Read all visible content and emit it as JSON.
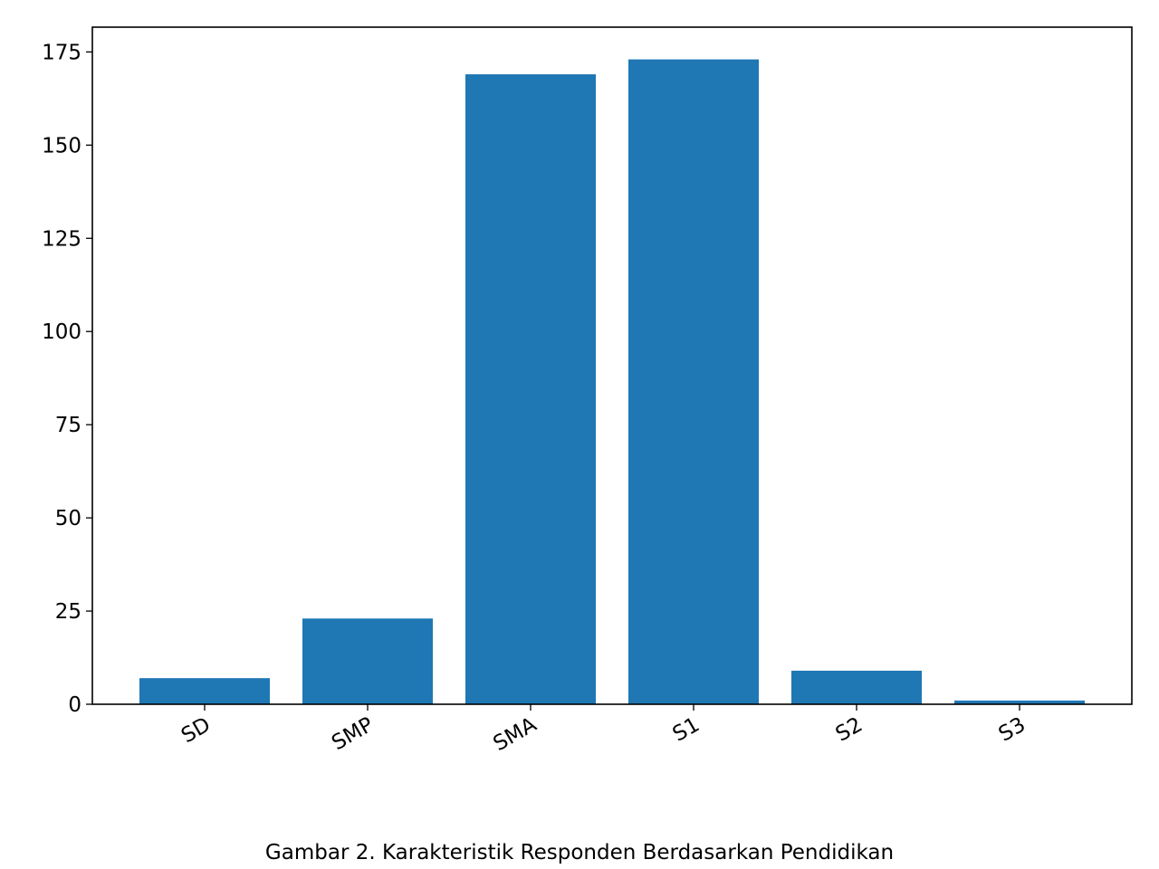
{
  "chart_data": {
    "type": "bar",
    "title": "Gambar 2. Karakteristik Responden Berdasarkan Pendidikan",
    "categories": [
      "SD",
      "SMP",
      "SMA",
      "S1",
      "S2",
      "S3"
    ],
    "values": [
      7,
      23,
      169,
      173,
      9,
      1
    ],
    "color": "#1f77b4",
    "ylim": [
      0,
      181.65
    ],
    "yticks": [
      0,
      25,
      50,
      75,
      100,
      125,
      150,
      175
    ],
    "grid": false
  }
}
